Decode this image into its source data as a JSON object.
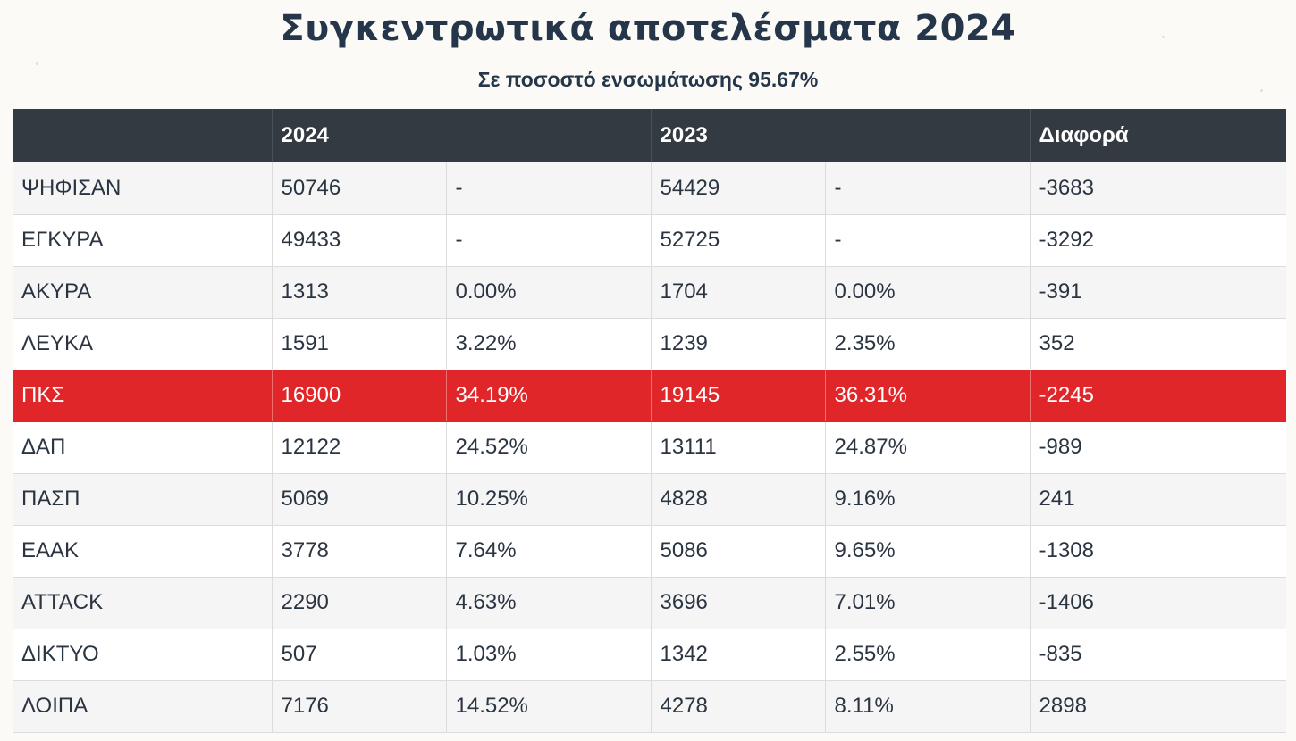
{
  "page": {
    "title": "Συγκεντρωτικά αποτελέσματα 2024",
    "subtitle": "Σε ποσοστό ενσωμάτωσης 95.67%"
  },
  "colors": {
    "header_bg": "#333a42",
    "highlight_row": "#e1262a",
    "title_text": "#25364a"
  },
  "table": {
    "headers": [
      "",
      "2024",
      "",
      "2023",
      "",
      "Διαφορά"
    ],
    "rows": [
      {
        "label": "ΨΗΦΙΣΑΝ",
        "votes_2024": "50746",
        "pct_2024": "-",
        "votes_2023": "54429",
        "pct_2023": "-",
        "diff": "-3683"
      },
      {
        "label": "ΕΓΚΥΡΑ",
        "votes_2024": "49433",
        "pct_2024": "-",
        "votes_2023": "52725",
        "pct_2023": "-",
        "diff": "-3292"
      },
      {
        "label": "ΑΚΥΡΑ",
        "votes_2024": "1313",
        "pct_2024": "0.00%",
        "votes_2023": "1704",
        "pct_2023": "0.00%",
        "diff": "-391"
      },
      {
        "label": "ΛΕΥΚΑ",
        "votes_2024": "1591",
        "pct_2024": "3.22%",
        "votes_2023": "1239",
        "pct_2023": "2.35%",
        "diff": "352"
      },
      {
        "label": "ΠΚΣ",
        "votes_2024": "16900",
        "pct_2024": "34.19%",
        "votes_2023": "19145",
        "pct_2023": "36.31%",
        "diff": "-2245"
      },
      {
        "label": "ΔΑΠ",
        "votes_2024": "12122",
        "pct_2024": "24.52%",
        "votes_2023": "13111",
        "pct_2023": "24.87%",
        "diff": "-989"
      },
      {
        "label": "ΠΑΣΠ",
        "votes_2024": "5069",
        "pct_2024": "10.25%",
        "votes_2023": "4828",
        "pct_2023": "9.16%",
        "diff": "241"
      },
      {
        "label": "ΕΑΑΚ",
        "votes_2024": "3778",
        "pct_2024": "7.64%",
        "votes_2023": "5086",
        "pct_2023": "9.65%",
        "diff": "-1308"
      },
      {
        "label": "ATTACK",
        "votes_2024": "2290",
        "pct_2024": "4.63%",
        "votes_2023": "3696",
        "pct_2023": "7.01%",
        "diff": "-1406"
      },
      {
        "label": "ΔΙΚΤΥΟ",
        "votes_2024": "507",
        "pct_2024": "1.03%",
        "votes_2023": "1342",
        "pct_2023": "2.55%",
        "diff": "-835"
      },
      {
        "label": "ΛΟΙΠΑ",
        "votes_2024": "7176",
        "pct_2024": "14.52%",
        "votes_2023": "4278",
        "pct_2023": "8.11%",
        "diff": "2898"
      }
    ]
  }
}
